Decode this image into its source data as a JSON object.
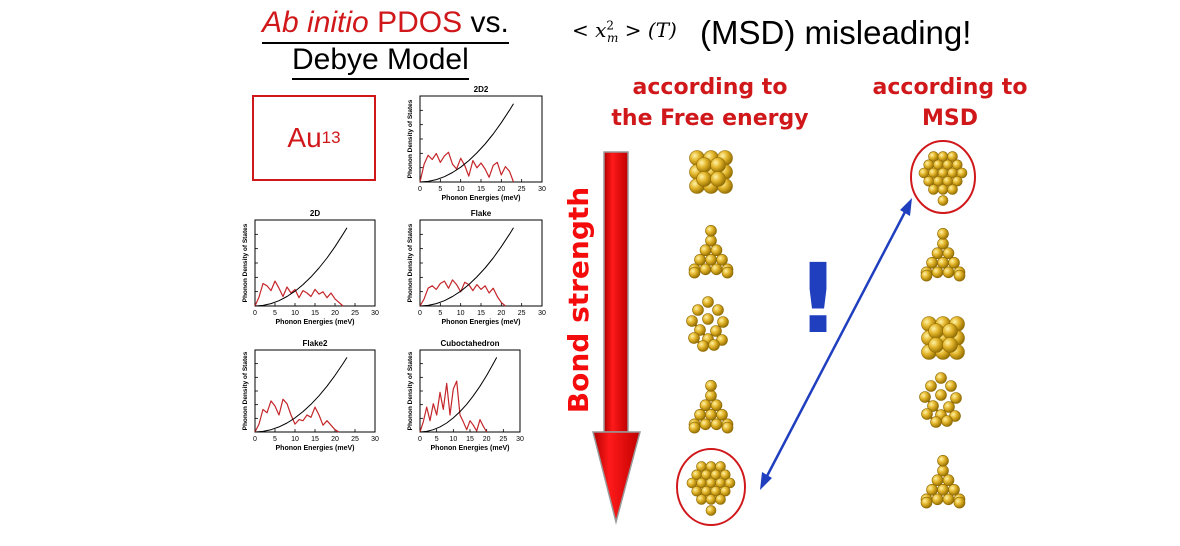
{
  "title": {
    "ab_initio": "Ab initio",
    "pdos": "PDOS",
    "vs": "vs.",
    "debye": "Debye Model"
  },
  "msd_formula": {
    "open": "< x",
    "sup": "2",
    "sub": "m",
    "close": " > (T)"
  },
  "msd_statement": "(MSD) misleading!",
  "cluster": {
    "base": "Au",
    "subscript": "13"
  },
  "bond_strength_label": "Bond strength",
  "column_free_energy": {
    "line1": "according to",
    "line2": "the Free energy"
  },
  "column_msd": {
    "line1": "according to",
    "line2": "MSD"
  },
  "exclamation": "!",
  "colors": {
    "red": "#d0181b",
    "bond_arrow": "#f40b0b",
    "link_arrow": "#1f3fbf",
    "gold": "#d6a915",
    "gold_dark": "#8f6a00",
    "pdos_curve": "#c4262a"
  },
  "chart_data": [
    {
      "type": "line",
      "title": "2D2",
      "xlabel": "Phonon Energies (meV)",
      "ylabel": "Phonon Density of States",
      "xlim": [
        0,
        30
      ],
      "xticks": [
        0,
        5,
        10,
        15,
        20,
        25,
        30
      ],
      "series": [
        {
          "x": [
            0,
            1,
            2,
            3,
            4,
            5,
            6,
            7,
            8,
            9,
            10,
            11,
            12,
            13,
            14,
            15,
            16,
            17,
            18,
            19,
            20,
            21,
            22,
            23
          ],
          "values": [
            0,
            0.3,
            0.45,
            0.38,
            0.48,
            0.33,
            0.44,
            0.5,
            0.3,
            0.22,
            0.4,
            0.28,
            0.1,
            0.36,
            0.24,
            0.32,
            0.22,
            0.08,
            0.28,
            0.33,
            0.12,
            0.26,
            0.18,
            0
          ]
        },
        {
          "x": [
            0,
            2,
            4,
            6,
            8,
            10,
            12,
            14,
            16,
            18,
            20,
            22,
            23
          ],
          "values": [
            0,
            0.01,
            0.04,
            0.09,
            0.16,
            0.25,
            0.36,
            0.49,
            0.64,
            0.81,
            1.0,
            1.21,
            1.32
          ]
        }
      ]
    },
    {
      "type": "line",
      "title": "2D",
      "xlabel": "Phonon Energies (meV)",
      "ylabel": "Phonon Density of States",
      "xlim": [
        0,
        30
      ],
      "xticks": [
        0,
        5,
        10,
        15,
        20,
        25,
        30
      ],
      "series": [
        {
          "x": [
            0,
            1,
            2,
            3,
            4,
            5,
            6,
            7,
            8,
            9,
            10,
            11,
            12,
            13,
            14,
            15,
            16,
            17,
            18,
            19,
            20,
            21,
            22
          ],
          "values": [
            0,
            0.15,
            0.38,
            0.34,
            0.26,
            0.42,
            0.3,
            0.16,
            0.32,
            0.22,
            0.28,
            0.14,
            0.26,
            0.22,
            0.16,
            0.28,
            0.2,
            0.24,
            0.14,
            0.22,
            0.12,
            0.06,
            0
          ]
        },
        {
          "x": [
            0,
            2,
            4,
            6,
            8,
            10,
            12,
            14,
            16,
            18,
            20,
            22,
            23
          ],
          "values": [
            0,
            0.01,
            0.04,
            0.09,
            0.16,
            0.25,
            0.36,
            0.49,
            0.64,
            0.81,
            1.0,
            1.21,
            1.32
          ]
        }
      ]
    },
    {
      "type": "line",
      "title": "Flake",
      "xlabel": "Phonon Energies (meV)",
      "ylabel": "Phonon Density of States",
      "xlim": [
        0,
        30
      ],
      "xticks": [
        0,
        5,
        10,
        15,
        20,
        25,
        30
      ],
      "series": [
        {
          "x": [
            0,
            1,
            2,
            3,
            4,
            5,
            6,
            7,
            8,
            9,
            10,
            11,
            12,
            13,
            14,
            15,
            16,
            17,
            18,
            19,
            20,
            21
          ],
          "values": [
            0,
            0.12,
            0.3,
            0.34,
            0.28,
            0.38,
            0.42,
            0.3,
            0.44,
            0.36,
            0.24,
            0.4,
            0.36,
            0.26,
            0.36,
            0.28,
            0.34,
            0.22,
            0.3,
            0.16,
            0.06,
            0
          ]
        },
        {
          "x": [
            0,
            2,
            4,
            6,
            8,
            10,
            12,
            14,
            16,
            18,
            20,
            22,
            23
          ],
          "values": [
            0,
            0.01,
            0.04,
            0.09,
            0.16,
            0.25,
            0.36,
            0.49,
            0.64,
            0.81,
            1.0,
            1.21,
            1.32
          ]
        }
      ]
    },
    {
      "type": "line",
      "title": "Flake2",
      "xlabel": "Phonon Energies (meV)",
      "ylabel": "Phonon Density of States",
      "xlim": [
        0,
        30
      ],
      "xticks": [
        0,
        5,
        10,
        15,
        20,
        25,
        30
      ],
      "series": [
        {
          "x": [
            0,
            1,
            2,
            3,
            4,
            5,
            6,
            7,
            8,
            9,
            10,
            11,
            12,
            13,
            14,
            15,
            16,
            17,
            18,
            19,
            20,
            21
          ],
          "values": [
            0,
            0.14,
            0.4,
            0.34,
            0.55,
            0.46,
            0.3,
            0.58,
            0.5,
            0.3,
            0.14,
            0.22,
            0.2,
            0.3,
            0.26,
            0.44,
            0.3,
            0.12,
            0.2,
            0.12,
            0.04,
            0
          ]
        },
        {
          "x": [
            0,
            2,
            4,
            6,
            8,
            10,
            12,
            14,
            16,
            18,
            20,
            22,
            23
          ],
          "values": [
            0,
            0.01,
            0.04,
            0.09,
            0.16,
            0.25,
            0.36,
            0.49,
            0.64,
            0.81,
            1.0,
            1.21,
            1.32
          ]
        }
      ]
    },
    {
      "type": "line",
      "title": "Cuboctahedron",
      "xlabel": "Phonon Energies (meV)",
      "ylabel": "Phonon Density of States",
      "xlim": [
        0,
        30
      ],
      "xticks": [
        0,
        5,
        10,
        15,
        20,
        25,
        30
      ],
      "series": [
        {
          "x": [
            0,
            1,
            2,
            3,
            4,
            5,
            6,
            7,
            8,
            9,
            10,
            11,
            12,
            13,
            14,
            15,
            16,
            17,
            18,
            19,
            20
          ],
          "values": [
            0,
            0.18,
            0.44,
            0.2,
            0.5,
            0.3,
            0.7,
            0.4,
            0.86,
            0.3,
            0.76,
            0.9,
            0.3,
            0.18,
            0.04,
            0.2,
            0.12,
            0.02,
            0.22,
            0.1,
            0
          ]
        },
        {
          "x": [
            0,
            2,
            4,
            6,
            8,
            10,
            12,
            14,
            16,
            18,
            20,
            22,
            23
          ],
          "values": [
            0,
            0.01,
            0.04,
            0.09,
            0.16,
            0.25,
            0.36,
            0.49,
            0.64,
            0.81,
            1.0,
            1.21,
            1.32
          ]
        }
      ]
    }
  ]
}
